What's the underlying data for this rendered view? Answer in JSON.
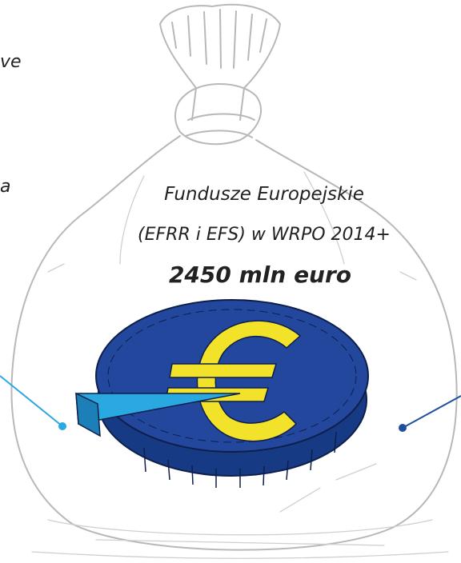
{
  "fragments": {
    "top": "ve",
    "middle": "a"
  },
  "bag": {
    "title_line1": "Fundusze Europejskie",
    "title_line2": "(EFRR i EFS) w WRPO 2014+",
    "amount": "2450 mln euro"
  }
}
